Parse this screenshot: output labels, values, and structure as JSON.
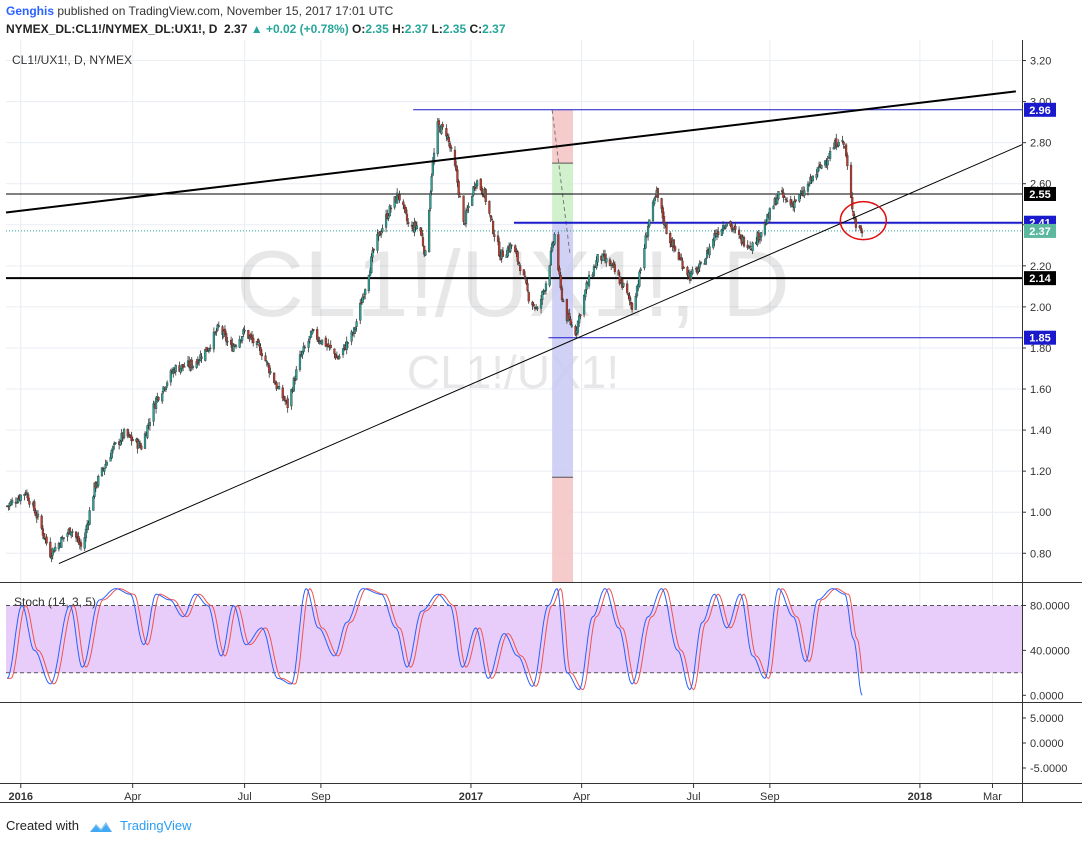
{
  "header": {
    "author": "Genghis",
    "published": " published on TradingView.com, November 15, 2017 17:01 UTC",
    "symbol": "NYMEX_DL:CL1!/NYMEX_DL:UX1!, D",
    "last": "2.37",
    "change": "+0.02 (+0.78%)",
    "open_label": "O:",
    "open": "2.35",
    "high_label": "H:",
    "high": "2.37",
    "low_label": "L:",
    "low": "2.35",
    "close_label": "C:",
    "close": "2.37"
  },
  "pane_title": "CL1!/UX1!, D, NYMEX",
  "watermark": {
    "big": "CL1!/UX1!, D",
    "small": "CL1!/UX1!"
  },
  "footer": {
    "created_with": "Created with",
    "brand": "TradingView"
  },
  "colors": {
    "up": "#26a69a",
    "down": "#c0392b",
    "blue_line": "#1a1acc",
    "stoch_k": "#2962ff",
    "stoch_d": "#ef5350",
    "stoch_band": "#e6c8fa"
  },
  "chart_data": {
    "type": "candlestick",
    "series_name": "CL1!/UX1!",
    "interval": "D",
    "x_range": [
      "2015-12-20",
      "2018-03-25"
    ],
    "ylim": [
      0.66,
      3.3
    ],
    "y_ticks": [
      0.8,
      1.0,
      1.2,
      1.4,
      1.6,
      1.8,
      2.0,
      2.2,
      2.4,
      2.6,
      2.8,
      3.0,
      3.2
    ],
    "y_tick_labels": [
      "0.80",
      "1.00",
      "1.20",
      "1.40",
      "1.60",
      "1.80",
      "2.00",
      "2.20",
      "2.40",
      "2.60",
      "2.80",
      "3.00",
      "3.20"
    ],
    "x_ticks": [
      {
        "date": "2016-01-01",
        "label": "2016",
        "bold": true
      },
      {
        "date": "2016-04-01",
        "label": "Apr",
        "bold": false
      },
      {
        "date": "2016-07-01",
        "label": "Jul",
        "bold": false
      },
      {
        "date": "2016-09-01",
        "label": "Sep",
        "bold": false
      },
      {
        "date": "2017-01-01",
        "label": "2017",
        "bold": true
      },
      {
        "date": "2017-04-01",
        "label": "Apr",
        "bold": false
      },
      {
        "date": "2017-07-01",
        "label": "Jul",
        "bold": false
      },
      {
        "date": "2017-09-01",
        "label": "Sep",
        "bold": false
      },
      {
        "date": "2018-01-01",
        "label": "2018",
        "bold": true
      },
      {
        "date": "2018-03-01",
        "label": "Mar",
        "bold": false
      }
    ],
    "close_path": [
      [
        "2015-12-21",
        1.03
      ],
      [
        "2016-01-05",
        1.1
      ],
      [
        "2016-01-15",
        0.97
      ],
      [
        "2016-01-25",
        0.8
      ],
      [
        "2016-02-11",
        0.92
      ],
      [
        "2016-02-20",
        0.82
      ],
      [
        "2016-03-01",
        1.12
      ],
      [
        "2016-03-15",
        1.3
      ],
      [
        "2016-03-25",
        1.38
      ],
      [
        "2016-04-08",
        1.32
      ],
      [
        "2016-04-20",
        1.55
      ],
      [
        "2016-05-05",
        1.7
      ],
      [
        "2016-05-20",
        1.72
      ],
      [
        "2016-06-01",
        1.8
      ],
      [
        "2016-06-10",
        1.9
      ],
      [
        "2016-06-20",
        1.8
      ],
      [
        "2016-07-01",
        1.88
      ],
      [
        "2016-07-15",
        1.78
      ],
      [
        "2016-07-28",
        1.6
      ],
      [
        "2016-08-05",
        1.52
      ],
      [
        "2016-08-15",
        1.75
      ],
      [
        "2016-08-25",
        1.87
      ],
      [
        "2016-09-05",
        1.82
      ],
      [
        "2016-09-15",
        1.75
      ],
      [
        "2016-09-28",
        1.88
      ],
      [
        "2016-10-05",
        2.05
      ],
      [
        "2016-10-15",
        2.3
      ],
      [
        "2016-10-25",
        2.45
      ],
      [
        "2016-11-03",
        2.55
      ],
      [
        "2016-11-12",
        2.38
      ],
      [
        "2016-11-20",
        2.4
      ],
      [
        "2016-11-25",
        2.25
      ],
      [
        "2016-11-30",
        2.65
      ],
      [
        "2016-12-05",
        2.88
      ],
      [
        "2016-12-12",
        2.85
      ],
      [
        "2016-12-20",
        2.65
      ],
      [
        "2016-12-26",
        2.4
      ],
      [
        "2017-01-05",
        2.62
      ],
      [
        "2017-01-12",
        2.55
      ],
      [
        "2017-01-18",
        2.4
      ],
      [
        "2017-01-25",
        2.25
      ],
      [
        "2017-02-03",
        2.3
      ],
      [
        "2017-02-10",
        2.2
      ],
      [
        "2017-02-17",
        2.05
      ],
      [
        "2017-02-24",
        1.98
      ],
      [
        "2017-03-03",
        2.12
      ],
      [
        "2017-03-10",
        2.35
      ],
      [
        "2017-03-15",
        2.08
      ],
      [
        "2017-03-20",
        1.95
      ],
      [
        "2017-03-27",
        1.88
      ],
      [
        "2017-04-05",
        2.1
      ],
      [
        "2017-04-15",
        2.25
      ],
      [
        "2017-04-25",
        2.2
      ],
      [
        "2017-05-05",
        2.1
      ],
      [
        "2017-05-12",
        2.0
      ],
      [
        "2017-05-18",
        2.15
      ],
      [
        "2017-05-25",
        2.4
      ],
      [
        "2017-06-01",
        2.55
      ],
      [
        "2017-06-10",
        2.35
      ],
      [
        "2017-06-18",
        2.25
      ],
      [
        "2017-06-28",
        2.15
      ],
      [
        "2017-07-08",
        2.2
      ],
      [
        "2017-07-18",
        2.35
      ],
      [
        "2017-07-28",
        2.42
      ],
      [
        "2017-08-08",
        2.33
      ],
      [
        "2017-08-18",
        2.3
      ],
      [
        "2017-08-28",
        2.4
      ],
      [
        "2017-09-08",
        2.55
      ],
      [
        "2017-09-18",
        2.5
      ],
      [
        "2017-09-28",
        2.55
      ],
      [
        "2017-10-05",
        2.62
      ],
      [
        "2017-10-12",
        2.68
      ],
      [
        "2017-10-20",
        2.75
      ],
      [
        "2017-10-27",
        2.82
      ],
      [
        "2017-11-01",
        2.78
      ],
      [
        "2017-11-06",
        2.52
      ],
      [
        "2017-11-10",
        2.4
      ],
      [
        "2017-11-15",
        2.37
      ]
    ],
    "last_price": 2.37,
    "horizontal_levels": [
      {
        "value": 2.96,
        "label": "2.96",
        "color": "#1a1acc",
        "start": "2016-11-15"
      },
      {
        "value": 2.55,
        "label": "2.55",
        "color": "#000000",
        "start": "2015-12-20"
      },
      {
        "value": 2.41,
        "label": "2.41",
        "color": "#1a1acc",
        "start": "2017-02-05"
      },
      {
        "value": 2.14,
        "label": "2.14",
        "color": "#000000",
        "start": "2015-12-20"
      },
      {
        "value": 1.85,
        "label": "1.85",
        "color": "#1a1acc",
        "start": "2017-03-05"
      }
    ],
    "trendlines": [
      {
        "from": [
          "2015-12-20",
          2.46
        ],
        "to": [
          "2018-03-20",
          3.05
        ],
        "color": "#000000",
        "width": 2
      },
      {
        "from": [
          "2016-02-01",
          0.75
        ],
        "to": [
          "2018-03-25",
          2.79
        ],
        "color": "#000000",
        "width": 1
      }
    ],
    "projection_tool": {
      "date_start": "2017-03-08",
      "date_end": "2017-03-25",
      "zones": [
        {
          "from": 2.96,
          "to": 2.7,
          "color": "#f4c2c2"
        },
        {
          "from": 2.7,
          "to": 2.41,
          "color": "#c9efc4"
        },
        {
          "from": 2.41,
          "to": 1.17,
          "color": "#c9c9f5"
        },
        {
          "from": 1.17,
          "to": 0.66,
          "color": "#f4c2c2"
        }
      ],
      "marks": [
        2.7,
        1.17
      ]
    },
    "highlight_circle": {
      "date": "2017-11-16",
      "value": 2.42
    },
    "stoch": {
      "name": "Stoch (14, 3, 5)",
      "ylim": [
        -6,
        100
      ],
      "band": [
        20,
        80
      ],
      "y_ticks": [
        0,
        40,
        80
      ],
      "y_tick_labels": [
        "0.0000",
        "40.0000",
        "80.0000"
      ],
      "k_points": [
        [
          "2015-12-21",
          15
        ],
        [
          "2016-01-02",
          80
        ],
        [
          "2016-01-12",
          40
        ],
        [
          "2016-01-25",
          10
        ],
        [
          "2016-02-10",
          80
        ],
        [
          "2016-02-20",
          25
        ],
        [
          "2016-03-05",
          85
        ],
        [
          "2016-03-18",
          95
        ],
        [
          "2016-03-30",
          90
        ],
        [
          "2016-04-10",
          45
        ],
        [
          "2016-04-20",
          90
        ],
        [
          "2016-05-01",
          85
        ],
        [
          "2016-05-12",
          70
        ],
        [
          "2016-05-22",
          90
        ],
        [
          "2016-06-01",
          80
        ],
        [
          "2016-06-12",
          35
        ],
        [
          "2016-06-22",
          80
        ],
        [
          "2016-07-02",
          45
        ],
        [
          "2016-07-15",
          60
        ],
        [
          "2016-07-28",
          15
        ],
        [
          "2016-08-08",
          10
        ],
        [
          "2016-08-20",
          95
        ],
        [
          "2016-08-30",
          60
        ],
        [
          "2016-09-12",
          35
        ],
        [
          "2016-09-22",
          65
        ],
        [
          "2016-10-05",
          95
        ],
        [
          "2016-10-20",
          90
        ],
        [
          "2016-11-01",
          60
        ],
        [
          "2016-11-10",
          25
        ],
        [
          "2016-11-22",
          75
        ],
        [
          "2016-12-05",
          90
        ],
        [
          "2016-12-15",
          80
        ],
        [
          "2016-12-25",
          25
        ],
        [
          "2017-01-05",
          60
        ],
        [
          "2017-01-15",
          15
        ],
        [
          "2017-01-28",
          55
        ],
        [
          "2017-02-08",
          35
        ],
        [
          "2017-02-20",
          8
        ],
        [
          "2017-03-05",
          80
        ],
        [
          "2017-03-12",
          95
        ],
        [
          "2017-03-20",
          20
        ],
        [
          "2017-03-30",
          5
        ],
        [
          "2017-04-10",
          70
        ],
        [
          "2017-04-20",
          95
        ],
        [
          "2017-05-01",
          60
        ],
        [
          "2017-05-12",
          10
        ],
        [
          "2017-05-25",
          70
        ],
        [
          "2017-06-05",
          95
        ],
        [
          "2017-06-18",
          40
        ],
        [
          "2017-06-28",
          5
        ],
        [
          "2017-07-08",
          65
        ],
        [
          "2017-07-18",
          90
        ],
        [
          "2017-07-28",
          60
        ],
        [
          "2017-08-08",
          90
        ],
        [
          "2017-08-18",
          35
        ],
        [
          "2017-08-28",
          15
        ],
        [
          "2017-09-08",
          95
        ],
        [
          "2017-09-20",
          70
        ],
        [
          "2017-09-30",
          30
        ],
        [
          "2017-10-10",
          85
        ],
        [
          "2017-10-22",
          95
        ],
        [
          "2017-11-01",
          90
        ],
        [
          "2017-11-08",
          50
        ],
        [
          "2017-11-15",
          0
        ]
      ]
    },
    "osc_pane": {
      "y_ticks": [
        -5,
        0,
        5
      ],
      "y_tick_labels": [
        "-5.0000",
        "0.0000",
        "5.0000"
      ]
    }
  }
}
